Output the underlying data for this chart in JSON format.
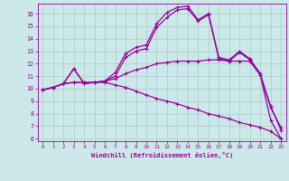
{
  "xlabel": "Windchill (Refroidissement éolien,°C)",
  "bg_color": "#cce8e8",
  "line_color": "#990099",
  "grid_color": "#aacccc",
  "xlim": [
    -0.5,
    23.5
  ],
  "ylim": [
    5.8,
    16.8
  ],
  "xticks": [
    0,
    1,
    2,
    3,
    4,
    5,
    6,
    7,
    8,
    9,
    10,
    11,
    12,
    13,
    14,
    15,
    16,
    17,
    18,
    19,
    20,
    21,
    22,
    23
  ],
  "yticks": [
    6,
    7,
    8,
    9,
    10,
    11,
    12,
    13,
    14,
    15,
    16
  ],
  "series1_x": [
    0,
    1,
    2,
    3,
    4,
    5,
    6,
    7,
    8,
    9,
    10,
    11,
    12,
    13,
    14,
    15,
    16,
    17,
    18,
    19,
    20,
    21,
    22,
    23
  ],
  "series1_y": [
    9.9,
    10.1,
    10.4,
    11.6,
    10.4,
    10.5,
    10.6,
    11.0,
    12.5,
    13.0,
    13.2,
    14.9,
    15.7,
    16.3,
    16.4,
    15.4,
    15.9,
    12.4,
    12.2,
    12.9,
    12.3,
    11.1,
    8.5,
    6.9
  ],
  "series2_x": [
    0,
    1,
    2,
    3,
    4,
    5,
    6,
    7,
    8,
    9,
    10,
    11,
    12,
    13,
    14,
    15,
    16,
    17,
    18,
    19,
    20,
    21,
    22,
    23
  ],
  "series2_y": [
    9.9,
    10.1,
    10.4,
    11.6,
    10.4,
    10.5,
    10.6,
    11.3,
    12.8,
    13.3,
    13.5,
    15.2,
    16.1,
    16.5,
    16.6,
    15.5,
    16.0,
    12.5,
    12.3,
    13.0,
    12.4,
    11.2,
    8.6,
    6.7
  ],
  "series3_x": [
    0,
    1,
    2,
    3,
    4,
    5,
    6,
    7,
    8,
    9,
    10,
    11,
    12,
    13,
    14,
    15,
    16,
    17,
    18,
    19,
    20,
    21,
    22,
    23
  ],
  "series3_y": [
    9.9,
    10.1,
    10.4,
    10.5,
    10.5,
    10.5,
    10.6,
    10.8,
    11.2,
    11.5,
    11.7,
    12.0,
    12.1,
    12.2,
    12.2,
    12.2,
    12.3,
    12.3,
    12.2,
    12.2,
    12.2,
    11.1,
    7.5,
    6.0
  ],
  "series4_x": [
    0,
    1,
    2,
    3,
    4,
    5,
    6,
    7,
    8,
    9,
    10,
    11,
    12,
    13,
    14,
    15,
    16,
    17,
    18,
    19,
    20,
    21,
    22,
    23
  ],
  "series4_y": [
    9.9,
    10.1,
    10.4,
    10.5,
    10.5,
    10.5,
    10.5,
    10.3,
    10.1,
    9.8,
    9.5,
    9.2,
    9.0,
    8.8,
    8.5,
    8.3,
    8.0,
    7.8,
    7.6,
    7.3,
    7.1,
    6.9,
    6.6,
    6.0
  ]
}
